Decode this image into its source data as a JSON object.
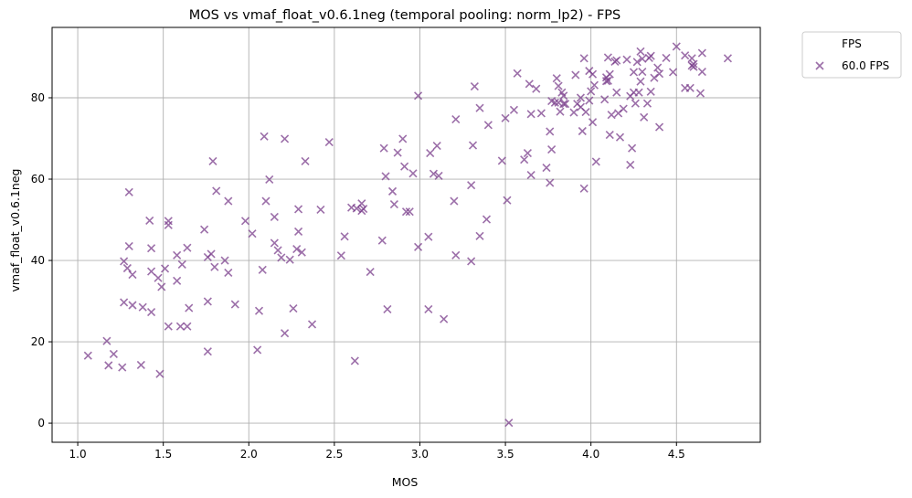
{
  "chart_data": {
    "type": "scatter",
    "title": "MOS vs vmaf_float_v0.6.1neg (temporal pooling: norm_lp2) - FPS",
    "xlabel": "MOS",
    "ylabel": "vmaf_float_v0.6.1neg",
    "xlim": [
      0.85,
      4.99
    ],
    "ylim": [
      -4.7,
      97.3
    ],
    "xticks": [
      1.0,
      1.5,
      2.0,
      2.5,
      3.0,
      3.5,
      4.0,
      4.5
    ],
    "xtick_labels": [
      "1.0",
      "1.5",
      "2.0",
      "2.5",
      "3.0",
      "3.5",
      "4.0",
      "4.5"
    ],
    "yticks": [
      0,
      20,
      40,
      60,
      80
    ],
    "ytick_labels": [
      "0",
      "20",
      "40",
      "60",
      "80"
    ],
    "grid": true,
    "legend": {
      "title": "FPS",
      "placement": "outside-top-right"
    },
    "marker_color": "#7b3f8c",
    "series": [
      {
        "name": "60.0 FPS",
        "marker": "x",
        "points": [
          [
            1.06,
            16.6
          ],
          [
            1.17,
            20.2
          ],
          [
            1.18,
            14.2
          ],
          [
            1.21,
            17.0
          ],
          [
            1.26,
            13.7
          ],
          [
            1.27,
            29.7
          ],
          [
            1.27,
            39.8
          ],
          [
            1.29,
            38.1
          ],
          [
            1.3,
            43.5
          ],
          [
            1.3,
            56.8
          ],
          [
            1.32,
            36.5
          ],
          [
            1.32,
            29.0
          ],
          [
            1.37,
            14.3
          ],
          [
            1.38,
            28.5
          ],
          [
            1.42,
            49.8
          ],
          [
            1.43,
            43.0
          ],
          [
            1.43,
            37.3
          ],
          [
            1.43,
            27.3
          ],
          [
            1.47,
            35.7
          ],
          [
            1.48,
            12.1
          ],
          [
            1.49,
            33.5
          ],
          [
            1.51,
            38.0
          ],
          [
            1.53,
            23.8
          ],
          [
            1.53,
            48.7
          ],
          [
            1.53,
            49.7
          ],
          [
            1.58,
            35.0
          ],
          [
            1.58,
            41.3
          ],
          [
            1.6,
            23.8
          ],
          [
            1.61,
            39.0
          ],
          [
            1.64,
            43.1
          ],
          [
            1.64,
            23.8
          ],
          [
            1.65,
            28.3
          ],
          [
            1.74,
            47.6
          ],
          [
            1.76,
            40.8
          ],
          [
            1.76,
            29.9
          ],
          [
            1.76,
            17.6
          ],
          [
            1.78,
            41.6
          ],
          [
            1.79,
            64.4
          ],
          [
            1.8,
            38.4
          ],
          [
            1.81,
            57.1
          ],
          [
            1.86,
            40.0
          ],
          [
            1.88,
            54.6
          ],
          [
            1.88,
            37.0
          ],
          [
            1.92,
            29.2
          ],
          [
            1.98,
            49.7
          ],
          [
            2.02,
            46.6
          ],
          [
            2.05,
            18.0
          ],
          [
            2.06,
            27.6
          ],
          [
            2.08,
            37.7
          ],
          [
            2.09,
            70.5
          ],
          [
            2.1,
            54.6
          ],
          [
            2.12,
            59.9
          ],
          [
            2.15,
            50.7
          ],
          [
            2.15,
            44.3
          ],
          [
            2.17,
            42.5
          ],
          [
            2.19,
            40.7
          ],
          [
            2.21,
            22.1
          ],
          [
            2.21,
            69.9
          ],
          [
            2.24,
            40.2
          ],
          [
            2.26,
            28.2
          ],
          [
            2.28,
            42.8
          ],
          [
            2.29,
            47.1
          ],
          [
            2.29,
            52.6
          ],
          [
            2.31,
            42.0
          ],
          [
            2.33,
            64.4
          ],
          [
            2.37,
            24.3
          ],
          [
            2.42,
            52.5
          ],
          [
            2.47,
            69.1
          ],
          [
            2.54,
            41.2
          ],
          [
            2.56,
            45.9
          ],
          [
            2.6,
            53.0
          ],
          [
            2.62,
            15.3
          ],
          [
            2.63,
            52.8
          ],
          [
            2.66,
            52.2
          ],
          [
            2.66,
            54.0
          ],
          [
            2.67,
            52.7
          ],
          [
            2.71,
            37.2
          ],
          [
            2.78,
            44.9
          ],
          [
            2.79,
            67.6
          ],
          [
            2.8,
            60.7
          ],
          [
            2.81,
            28.0
          ],
          [
            2.84,
            57.0
          ],
          [
            2.85,
            53.8
          ],
          [
            2.87,
            66.5
          ],
          [
            2.9,
            69.9
          ],
          [
            2.91,
            63.1
          ],
          [
            2.92,
            52.0
          ],
          [
            2.94,
            52.0
          ],
          [
            2.96,
            61.4
          ],
          [
            2.99,
            43.3
          ],
          [
            2.99,
            80.5
          ],
          [
            3.05,
            45.8
          ],
          [
            3.05,
            28.0
          ],
          [
            3.06,
            66.4
          ],
          [
            3.08,
            61.3
          ],
          [
            3.1,
            68.2
          ],
          [
            3.11,
            60.8
          ],
          [
            3.14,
            25.6
          ],
          [
            3.2,
            54.6
          ],
          [
            3.21,
            41.3
          ],
          [
            3.21,
            74.7
          ],
          [
            3.3,
            39.8
          ],
          [
            3.3,
            58.5
          ],
          [
            3.31,
            68.3
          ],
          [
            3.32,
            82.8
          ],
          [
            3.35,
            77.5
          ],
          [
            3.35,
            46.0
          ],
          [
            3.39,
            50.1
          ],
          [
            3.4,
            73.3
          ],
          [
            3.48,
            64.5
          ],
          [
            3.5,
            75.0
          ],
          [
            3.51,
            54.8
          ],
          [
            3.52,
            0.1
          ],
          [
            3.55,
            77.0
          ],
          [
            3.57,
            86.0
          ],
          [
            3.61,
            64.8
          ],
          [
            3.63,
            66.4
          ],
          [
            3.64,
            83.4
          ],
          [
            3.65,
            76.0
          ],
          [
            3.65,
            61.0
          ],
          [
            3.68,
            82.2
          ],
          [
            3.71,
            76.2
          ],
          [
            3.74,
            62.8
          ],
          [
            3.76,
            71.7
          ],
          [
            3.76,
            59.1
          ],
          [
            3.77,
            67.3
          ],
          [
            3.77,
            79.2
          ],
          [
            3.79,
            78.8
          ],
          [
            3.8,
            84.8
          ],
          [
            3.81,
            78.8
          ],
          [
            3.81,
            82.9
          ],
          [
            3.82,
            76.6
          ],
          [
            3.83,
            81.3
          ],
          [
            3.84,
            80.5
          ],
          [
            3.84,
            78.5
          ],
          [
            3.85,
            78.5
          ],
          [
            3.9,
            76.4
          ],
          [
            3.91,
            85.6
          ],
          [
            3.92,
            78.5
          ],
          [
            3.94,
            80.0
          ],
          [
            3.94,
            77.7
          ],
          [
            3.95,
            71.8
          ],
          [
            3.96,
            89.7
          ],
          [
            3.96,
            57.7
          ],
          [
            3.97,
            76.5
          ],
          [
            3.99,
            86.6
          ],
          [
            3.99,
            79.3
          ],
          [
            4.0,
            81.6
          ],
          [
            4.01,
            85.8
          ],
          [
            4.01,
            74.0
          ],
          [
            4.02,
            83.1
          ],
          [
            4.03,
            64.3
          ],
          [
            4.08,
            79.6
          ],
          [
            4.09,
            84.1
          ],
          [
            4.09,
            85.0
          ],
          [
            4.1,
            84.2
          ],
          [
            4.1,
            89.9
          ],
          [
            4.11,
            85.8
          ],
          [
            4.11,
            70.9
          ],
          [
            4.12,
            75.8
          ],
          [
            4.14,
            88.9
          ],
          [
            4.15,
            89.2
          ],
          [
            4.15,
            81.3
          ],
          [
            4.16,
            76.2
          ],
          [
            4.17,
            70.3
          ],
          [
            4.19,
            77.3
          ],
          [
            4.21,
            89.4
          ],
          [
            4.23,
            80.4
          ],
          [
            4.23,
            63.5
          ],
          [
            4.24,
            67.6
          ],
          [
            4.25,
            81.3
          ],
          [
            4.25,
            86.3
          ],
          [
            4.26,
            78.6
          ],
          [
            4.27,
            88.8
          ],
          [
            4.28,
            81.3
          ],
          [
            4.29,
            91.4
          ],
          [
            4.29,
            84.0
          ],
          [
            4.3,
            89.6
          ],
          [
            4.3,
            86.4
          ],
          [
            4.31,
            75.2
          ],
          [
            4.33,
            78.6
          ],
          [
            4.34,
            89.8
          ],
          [
            4.35,
            81.5
          ],
          [
            4.35,
            90.3
          ],
          [
            4.37,
            84.9
          ],
          [
            4.39,
            87.4
          ],
          [
            4.4,
            85.9
          ],
          [
            4.4,
            72.8
          ],
          [
            4.44,
            89.8
          ],
          [
            4.48,
            86.3
          ],
          [
            4.5,
            92.6
          ],
          [
            4.55,
            82.4
          ],
          [
            4.55,
            90.4
          ],
          [
            4.58,
            82.4
          ],
          [
            4.59,
            89.7
          ],
          [
            4.59,
            87.9
          ],
          [
            4.6,
            88.3
          ],
          [
            4.6,
            87.6
          ],
          [
            4.64,
            81.1
          ],
          [
            4.65,
            86.4
          ],
          [
            4.65,
            91.0
          ],
          [
            4.8,
            89.7
          ]
        ]
      }
    ]
  }
}
